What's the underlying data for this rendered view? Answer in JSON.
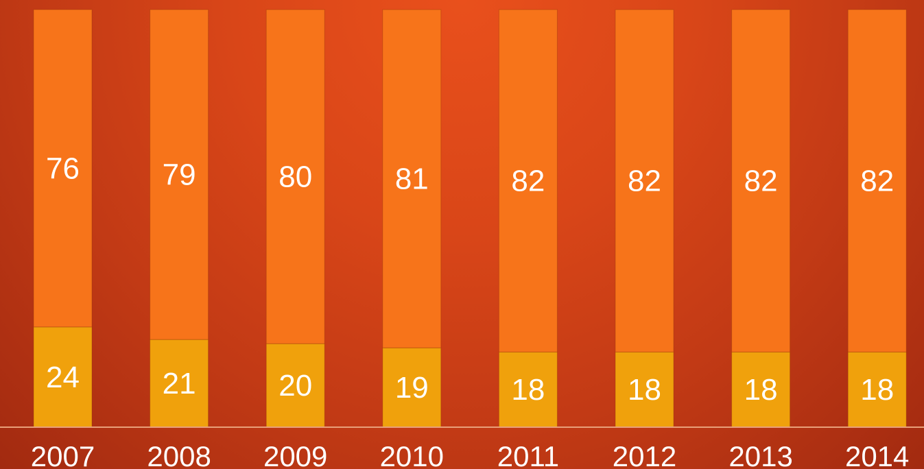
{
  "chart_data": {
    "type": "bar",
    "stacked": true,
    "categories": [
      "2007",
      "2008",
      "2009",
      "2010",
      "2011",
      "2012",
      "2013",
      "2014"
    ],
    "series": [
      {
        "values": [
          24,
          21,
          20,
          19,
          18,
          18,
          18,
          18
        ],
        "color": "#f0a10c"
      },
      {
        "values": [
          76,
          79,
          80,
          81,
          82,
          82,
          82,
          82
        ],
        "color": "#f7741a"
      }
    ],
    "ylim": [
      0,
      100
    ],
    "grid": false,
    "legend": "none",
    "title": "",
    "xlabel": "",
    "ylabel": ""
  }
}
